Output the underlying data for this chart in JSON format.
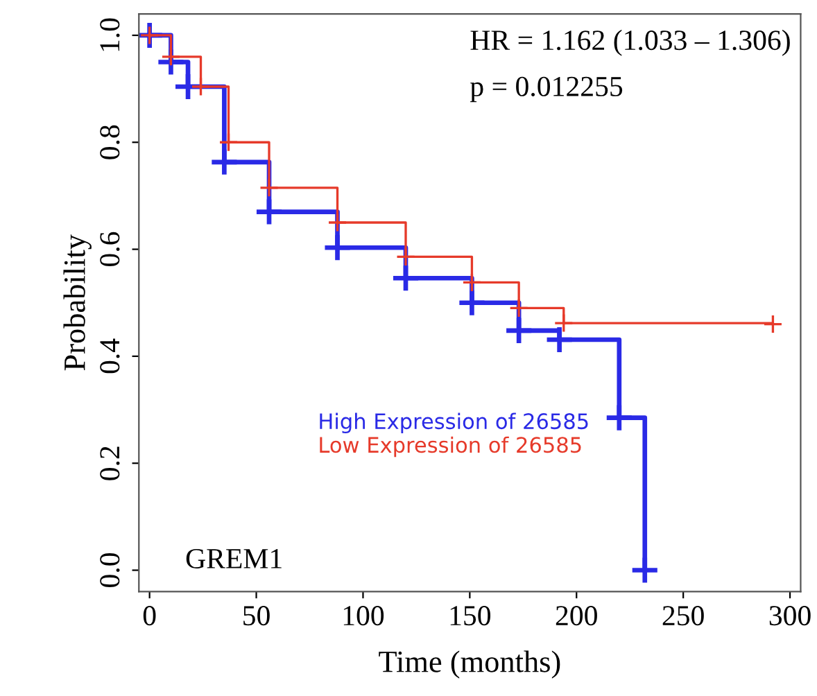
{
  "chart_data": {
    "type": "step",
    "xlabel": "Time (months)",
    "ylabel": "Probability",
    "xlim": [
      -5,
      305
    ],
    "ylim": [
      -0.04,
      1.04
    ],
    "xticks": [
      0,
      50,
      100,
      150,
      200,
      250,
      300
    ],
    "yticks": [
      {
        "value": 0,
        "label": "0.0"
      },
      {
        "value": 0.2,
        "label": "0.2"
      },
      {
        "value": 0.4,
        "label": "0.4"
      },
      {
        "value": 0.6,
        "label": "0.6"
      },
      {
        "value": 0.8,
        "label": "0.8"
      },
      {
        "value": 1,
        "label": "1.0"
      }
    ],
    "grid": false,
    "legend": "bottom right",
    "marker": "cross",
    "line_style": "solid",
    "series": [
      {
        "name": "High Expression of 26585",
        "color": "#2a2ae6",
        "x": [
          0,
          10,
          18,
          35,
          56,
          88,
          120,
          151,
          173,
          192,
          220,
          232
        ],
        "values": [
          1,
          0.95,
          0.904,
          0.763,
          0.67,
          0.603,
          0.546,
          0.5,
          0.448,
          0.431,
          0.285,
          0.0
        ]
      },
      {
        "name": "Low Expression of 26585",
        "color": "#e63a2a",
        "x": [
          0,
          10,
          24,
          37,
          56,
          88,
          120,
          151,
          173,
          194,
          292
        ],
        "values": [
          1,
          0.96,
          0.904,
          0.8,
          0.715,
          0.65,
          0.586,
          0.538,
          0.49,
          0.462,
          0.46
        ]
      }
    ],
    "annotations": [
      "HR = 1.162 (1.033 – 1.306)",
      "p = 0.012255",
      "GREM1"
    ]
  }
}
